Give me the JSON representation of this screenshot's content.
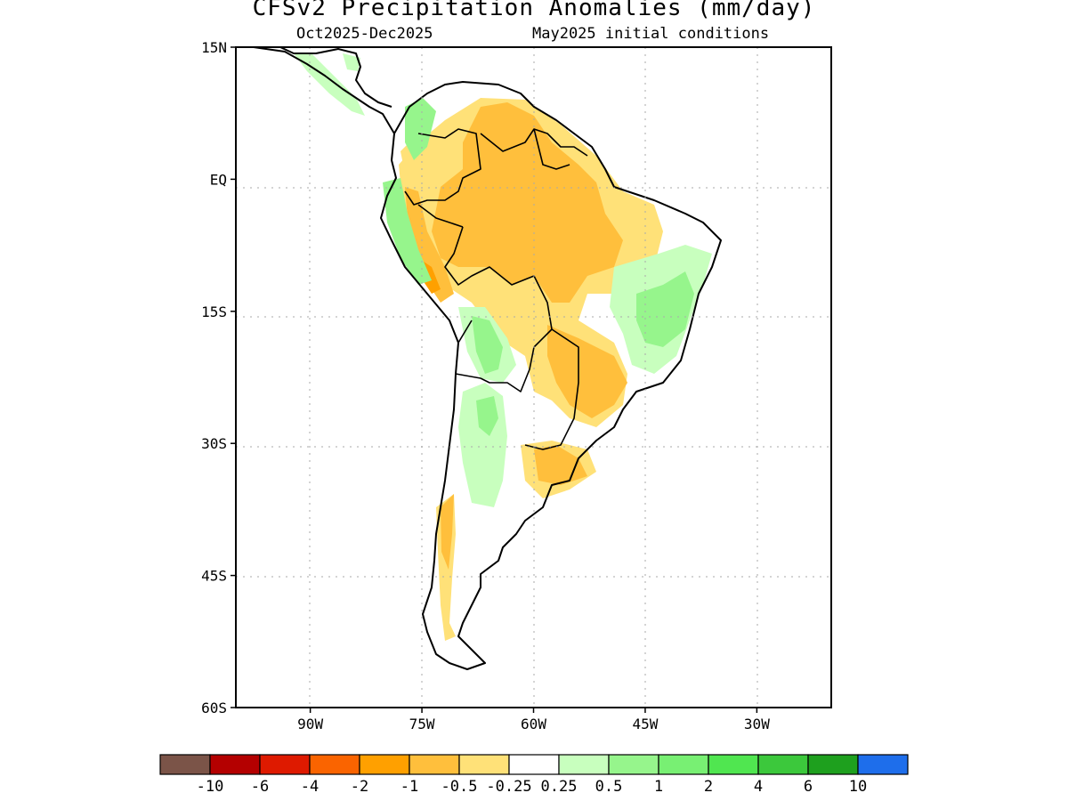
{
  "title": "CFSv2 Precipitation Anomalies (mm/day)",
  "subtitle_left": "Oct2025-Dec2025",
  "subtitle_right": "May2025 initial conditions",
  "axes": {
    "lat_labels": [
      "15N",
      "EQ",
      "15S",
      "30S",
      "45S",
      "60S"
    ],
    "lon_labels": [
      "90W",
      "75W",
      "60W",
      "45W",
      "30W"
    ],
    "lat_range": [
      -60,
      15
    ],
    "lon_range": [
      -100,
      -20
    ],
    "grid": "dotted"
  },
  "legend": {
    "labels": [
      "-10",
      "-6",
      "-4",
      "-2",
      "-1",
      "-0.5",
      "-0.25",
      "0.25",
      "0.5",
      "1",
      "2",
      "4",
      "6",
      "10"
    ],
    "colors": [
      "#7b5448",
      "#b40000",
      "#de1a00",
      "#fa6400",
      "#ffa000",
      "#ffbf3c",
      "#ffe178",
      "#ffffff",
      "#c8ffbe",
      "#96f58c",
      "#78f073",
      "#50e650",
      "#3cc83c",
      "#1ea01e",
      "#1e6eeb"
    ]
  },
  "anomaly_colors": {
    "dry_light": "#ffe178",
    "dry_medium": "#ffbf3c",
    "dry_strong": "#ffa000",
    "wet_light": "#c8ffbe",
    "wet_medium": "#96f58c",
    "wet_strong": "#50e650"
  }
}
